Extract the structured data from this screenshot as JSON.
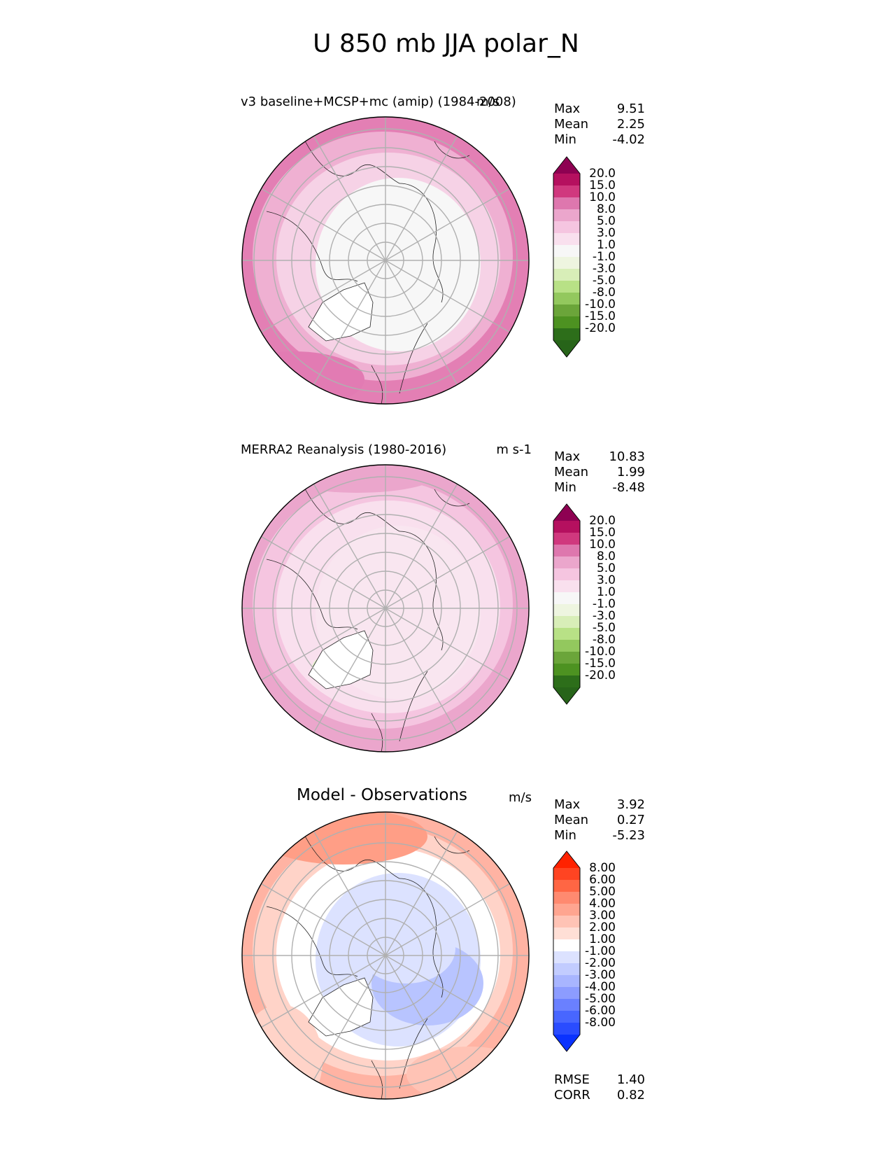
{
  "title": "U 850 mb JJA polar_N",
  "panels": [
    {
      "title": "v3 baseline+MCSP+mc (amip) (1984-2008)",
      "units": "m/s",
      "stats": [
        {
          "label": "Max",
          "value": "9.51"
        },
        {
          "label": "Mean",
          "value": "2.25"
        },
        {
          "label": "Min",
          "value": "-4.02"
        }
      ],
      "colorbar": {
        "levels": [
          "20.0",
          "15.0",
          "10.0",
          "8.0",
          "5.0",
          "3.0",
          "1.0",
          "-1.0",
          "-3.0",
          "-5.0",
          "-8.0",
          "-10.0",
          "-15.0",
          "-20.0"
        ],
        "colors": [
          "#8e0152",
          "#b5105f",
          "#d0387e",
          "#de77ae",
          "#eba6cc",
          "#f5c5e0",
          "#f9e0ee",
          "#f7f7f7",
          "#eef5e0",
          "#d8eeb8",
          "#b8e186",
          "#93c85e",
          "#6ba53a",
          "#4d9221",
          "#2d6e1a",
          "#276419"
        ]
      }
    },
    {
      "title": "MERRA2 Reanalysis (1980-2016)",
      "units": "m s-1",
      "stats": [
        {
          "label": "Max",
          "value": "10.83"
        },
        {
          "label": "Mean",
          "value": "1.99"
        },
        {
          "label": "Min",
          "value": "-8.48"
        }
      ],
      "colorbar": {
        "levels": [
          "20.0",
          "15.0",
          "10.0",
          "8.0",
          "5.0",
          "3.0",
          "1.0",
          "-1.0",
          "-3.0",
          "-5.0",
          "-8.0",
          "-10.0",
          "-15.0",
          "-20.0"
        ],
        "colors": [
          "#8e0152",
          "#b5105f",
          "#d0387e",
          "#de77ae",
          "#eba6cc",
          "#f5c5e0",
          "#f9e0ee",
          "#f7f7f7",
          "#eef5e0",
          "#d8eeb8",
          "#b8e186",
          "#93c85e",
          "#6ba53a",
          "#4d9221",
          "#2d6e1a",
          "#276419"
        ]
      }
    },
    {
      "title": "Model - Observations",
      "units": "m/s",
      "stats": [
        {
          "label": "Max",
          "value": "3.92"
        },
        {
          "label": "Mean",
          "value": "0.27"
        },
        {
          "label": "Min",
          "value": "-5.23"
        }
      ],
      "colorbar": {
        "levels": [
          "8.00",
          "6.00",
          "5.00",
          "4.00",
          "3.00",
          "2.00",
          "1.00",
          "-1.00",
          "-2.00",
          "-3.00",
          "-4.00",
          "-5.00",
          "-6.00",
          "-8.00"
        ],
        "colors": [
          "#ff2200",
          "#ff4422",
          "#ff6644",
          "#ff8a70",
          "#ffa590",
          "#ffc3b5",
          "#ffdfd6",
          "#ffffff",
          "#dce2ff",
          "#c2ccff",
          "#a8b5ff",
          "#8c9cff",
          "#6a80ff",
          "#4866ff",
          "#2a4cff",
          "#0a32ff"
        ]
      },
      "footer_stats": [
        {
          "label": "RMSE",
          "value": "1.40"
        },
        {
          "label": "CORR",
          "value": "0.82"
        }
      ]
    }
  ],
  "map_fill": {
    "panel1": {
      "outer": "#e37fb4",
      "ring1": "#efb0d2",
      "ring2": "#f6d2e6",
      "inner": "#f7f7f7"
    },
    "panel2": {
      "outer": "#eba6cc",
      "ring1": "#f5c5e0",
      "ring2": "#f9e0ee",
      "inner": "#f9e6f0"
    },
    "panel3": {
      "outer": "#ffb3a3",
      "ring1": "#ffd3c8",
      "ring2": "#ffffff",
      "inner": "#dce2ff"
    }
  }
}
